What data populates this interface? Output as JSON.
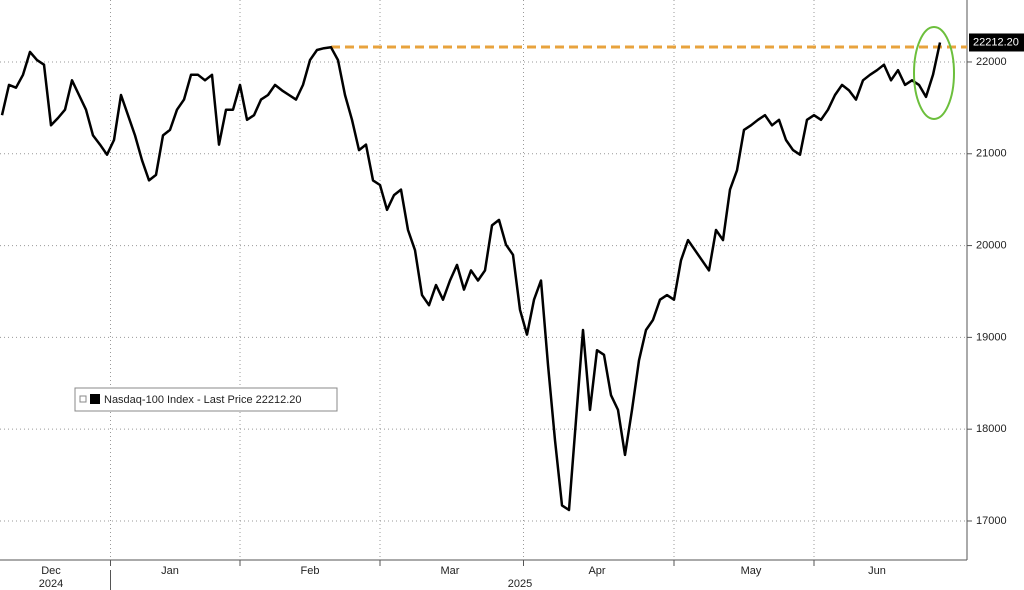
{
  "chart_data": {
    "type": "line",
    "categories": [
      null,
      null,
      null,
      null,
      null,
      null,
      null,
      "Dec",
      null,
      null,
      null,
      null,
      null,
      null,
      null,
      null,
      null,
      null,
      null,
      null,
      null,
      null,
      null,
      null,
      "Jan",
      null,
      null,
      null,
      null,
      null,
      null,
      null,
      null,
      null,
      null,
      null,
      null,
      null,
      null,
      null,
      null,
      null,
      null,
      null,
      "Feb",
      null,
      null,
      null,
      null,
      null,
      null,
      null,
      null,
      null,
      null,
      null,
      null,
      null,
      null,
      null,
      null,
      null,
      null,
      null,
      "Mar",
      null,
      null,
      null,
      null,
      null,
      null,
      null,
      null,
      null,
      null,
      null,
      null,
      null,
      null,
      null,
      null,
      null,
      null,
      null,
      null,
      "Apr",
      null,
      null,
      null,
      null,
      null,
      null,
      null,
      null,
      null,
      null,
      null,
      null,
      null,
      null,
      null,
      null,
      null,
      null,
      null,
      null,
      null,
      "May",
      null,
      null,
      null,
      null,
      null,
      null,
      null,
      null,
      null,
      null,
      null,
      null,
      null,
      null,
      null,
      null,
      null,
      "Jun",
      null,
      null,
      null,
      null,
      null,
      null,
      null,
      null,
      null
    ],
    "years": [
      {
        "label": "2024",
        "start": "Dec"
      },
      {
        "label": "2025",
        "start": "Jan"
      }
    ],
    "series": [
      {
        "name": "Nasdaq-100 Index - Last Price 22212.20",
        "color": "#000000",
        "last_price_label": "22212.20",
        "values": [
          21420,
          21750,
          21720,
          21860,
          22110,
          22020,
          21970,
          21310,
          21390,
          21480,
          21800,
          21640,
          21480,
          21200,
          21100,
          20990,
          21150,
          21640,
          21420,
          21200,
          20930,
          20710,
          20770,
          21200,
          21260,
          21480,
          21590,
          21860,
          21860,
          21800,
          21860,
          21100,
          21480,
          21480,
          21750,
          21370,
          21420,
          21590,
          21640,
          21750,
          21690,
          21640,
          21590,
          21750,
          22020,
          22130,
          22150,
          22160,
          22020,
          21640,
          21370,
          21040,
          21100,
          20710,
          20660,
          20390,
          20550,
          20610,
          20170,
          19950,
          19460,
          19350,
          19570,
          19410,
          19620,
          19790,
          19520,
          19730,
          19620,
          19730,
          20220,
          20280,
          20010,
          19900,
          19300,
          19030,
          19410,
          19620,
          18700,
          17880,
          17170,
          17120,
          18100,
          19080,
          18210,
          18860,
          18810,
          18370,
          18210,
          17720,
          18210,
          18750,
          19080,
          19190,
          19410,
          19460,
          19410,
          19840,
          20060,
          19950,
          19840,
          19730,
          20170,
          20060,
          20610,
          20820,
          21260,
          21310,
          21370,
          21420,
          21310,
          21370,
          21150,
          21040,
          20990,
          21370,
          21420,
          21370,
          21480,
          21640,
          21750,
          21690,
          21590,
          21800,
          21860,
          21910,
          21970,
          21800,
          21910,
          21750,
          21800,
          21750,
          21620,
          21860,
          22212.2
        ]
      }
    ],
    "reference_line": {
      "value": 22163,
      "color": "#e8a33d"
    },
    "ylim": [
      16575,
      22675
    ],
    "yticks": [
      17000,
      18000,
      19000,
      20000,
      21000,
      22000
    ],
    "grid": true
  }
}
